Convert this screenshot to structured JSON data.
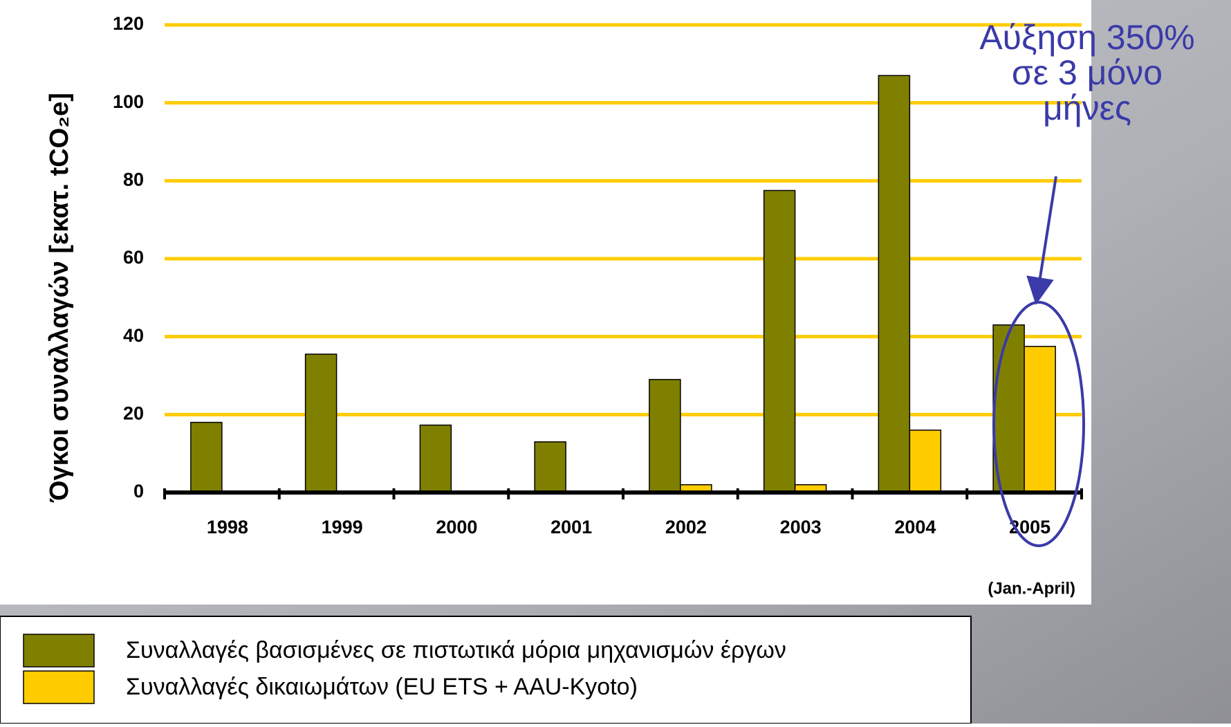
{
  "chart_data": {
    "type": "bar",
    "y_label": "Όγκοι συναλλαγών [εκατ. tCO₂e]",
    "categories": [
      "1998",
      "1999",
      "2000",
      "2001",
      "2002",
      "2003",
      "2004",
      "2005"
    ],
    "note": "(Jan.-April)",
    "series": [
      {
        "name": "Συναλλαγές βασισμένες σε πιστωτικά μόρια μηχανισμών έργων",
        "color": "#808000",
        "values": [
          18,
          35.5,
          17.3,
          13,
          29,
          77.5,
          107,
          43
        ]
      },
      {
        "name": "Συναλλαγές δικαιωμάτων  (EU ETS + AAU-Kyoto)",
        "color": "#ffcc00",
        "values": [
          null,
          null,
          null,
          null,
          2,
          2,
          16,
          37.5
        ]
      }
    ],
    "ylim": [
      0,
      120
    ],
    "yticks": [
      0,
      20,
      40,
      60,
      80,
      100,
      120
    ],
    "grid": true,
    "grid_color": "#ffcc00",
    "annotation": [
      "Αύξηση 350%",
      "σε 3 μόνο",
      "μήνες"
    ]
  }
}
